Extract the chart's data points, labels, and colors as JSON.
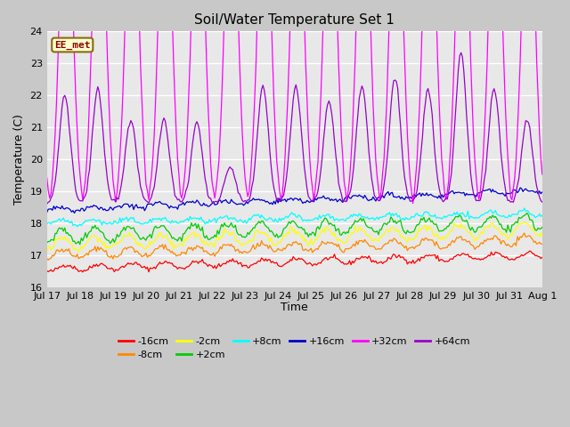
{
  "title": "Soil/Water Temperature Set 1",
  "ylabel": "Temperature (C)",
  "xlabel": "Time",
  "fig_bg": "#c8c8c8",
  "plot_bg": "#e8e8e8",
  "ylim": [
    16.0,
    24.0
  ],
  "yticks": [
    16.0,
    17.0,
    18.0,
    19.0,
    20.0,
    21.0,
    22.0,
    23.0,
    24.0
  ],
  "x_start": 0,
  "x_end": 360,
  "series_order": [
    "-16cm",
    "-8cm",
    "-2cm",
    "+2cm",
    "+8cm",
    "+16cm",
    "+32cm",
    "+64cm"
  ],
  "series": {
    "-16cm": {
      "color": "#ff0000"
    },
    "-8cm": {
      "color": "#ff8800"
    },
    "-2cm": {
      "color": "#ffff00"
    },
    "+2cm": {
      "color": "#00cc00"
    },
    "+8cm": {
      "color": "#00ffff"
    },
    "+16cm": {
      "color": "#0000cc"
    },
    "+32cm": {
      "color": "#ff00ff"
    },
    "+64cm": {
      "color": "#9900cc"
    }
  },
  "xtick_labels": [
    "Jul 17",
    "Jul 18",
    "Jul 19",
    "Jul 20",
    "Jul 21",
    "Jul 22",
    "Jul 23",
    "Jul 24",
    "Jul 25",
    "Jul 26",
    "Jul 27",
    "Jul 28",
    "Jul 29",
    "Jul 30",
    "Jul 31",
    "Aug 1"
  ],
  "xtick_positions": [
    0,
    24,
    48,
    72,
    96,
    120,
    144,
    168,
    192,
    216,
    240,
    264,
    288,
    312,
    336,
    360
  ],
  "watermark": "EE_met",
  "watermark_color": "#8B0000",
  "watermark_bg": "#ffffcc",
  "watermark_border": "#8B6914",
  "grid_color": "#ffffff",
  "title_fontsize": 11,
  "axis_fontsize": 9,
  "tick_fontsize": 8
}
